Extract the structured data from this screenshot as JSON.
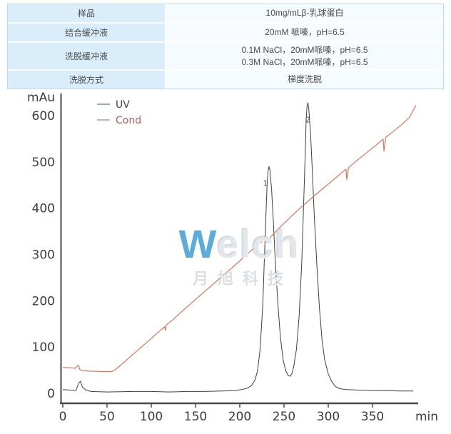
{
  "table": {
    "rows": [
      {
        "label": "样品",
        "value_lines": [
          "10mg/mLβ-乳球蛋白"
        ]
      },
      {
        "label": "结合缓冲液",
        "value_lines": [
          "20mM 哌嗪，pH=6.5"
        ]
      },
      {
        "label": "洗脱缓冲液",
        "value_lines": [
          "0.1M NaCl，20mM哌嗪，pH=6.5",
          "0.3M NaCl，20mM哌嗪，pH=6.5"
        ]
      },
      {
        "label": "洗脱方式",
        "value_lines": [
          "梯度洗脱"
        ]
      }
    ]
  },
  "watermark": {
    "brand_w": "W",
    "brand_rest": "elch",
    "subtitle": "月旭科技"
  },
  "chart_data": {
    "type": "line",
    "title": "",
    "xlabel": "min",
    "ylabel": "mAu",
    "xlim": [
      0,
      400
    ],
    "ylim": [
      0,
      650
    ],
    "x_ticks": [
      0,
      50,
      100,
      150,
      200,
      250,
      300,
      350
    ],
    "y_ticks": [
      0,
      100,
      200,
      300,
      400,
      500,
      600
    ],
    "grid": false,
    "legend_position": "top-left",
    "series": [
      {
        "name": "UV",
        "color": "#3f3f3f",
        "legend_dash_color": "#7d8ab8",
        "legend_text_color": "#39406e",
        "points": [
          [
            0,
            8
          ],
          [
            8,
            7
          ],
          [
            13,
            6
          ],
          [
            15,
            7
          ],
          [
            18,
            22
          ],
          [
            20,
            26
          ],
          [
            22,
            14
          ],
          [
            26,
            7
          ],
          [
            32,
            4
          ],
          [
            50,
            3
          ],
          [
            80,
            4
          ],
          [
            100,
            4
          ],
          [
            120,
            3
          ],
          [
            140,
            4
          ],
          [
            160,
            4
          ],
          [
            180,
            5
          ],
          [
            195,
            6
          ],
          [
            202,
            8
          ],
          [
            208,
            11
          ],
          [
            213,
            16
          ],
          [
            217,
            28
          ],
          [
            220,
            48
          ],
          [
            223,
            95
          ],
          [
            226,
            190
          ],
          [
            228,
            300
          ],
          [
            230,
            408
          ],
          [
            231,
            455
          ],
          [
            232,
            480
          ],
          [
            233,
            490
          ],
          [
            234,
            483
          ],
          [
            236,
            440
          ],
          [
            238,
            370
          ],
          [
            240,
            290
          ],
          [
            243,
            195
          ],
          [
            246,
            120
          ],
          [
            249,
            72
          ],
          [
            252,
            48
          ],
          [
            255,
            38
          ],
          [
            257,
            37
          ],
          [
            259,
            43
          ],
          [
            261,
            58
          ],
          [
            264,
            95
          ],
          [
            267,
            165
          ],
          [
            270,
            280
          ],
          [
            272,
            400
          ],
          [
            274,
            520
          ],
          [
            275,
            590
          ],
          [
            276,
            620
          ],
          [
            277,
            628
          ],
          [
            278,
            615
          ],
          [
            280,
            560
          ],
          [
            282,
            480
          ],
          [
            284,
            390
          ],
          [
            287,
            280
          ],
          [
            290,
            185
          ],
          [
            293,
            115
          ],
          [
            296,
            72
          ],
          [
            300,
            42
          ],
          [
            304,
            25
          ],
          [
            308,
            15
          ],
          [
            313,
            10
          ],
          [
            320,
            8
          ],
          [
            335,
            7
          ],
          [
            350,
            6
          ],
          [
            365,
            6
          ],
          [
            380,
            5
          ],
          [
            396,
            5
          ]
        ]
      },
      {
        "name": "Cond",
        "color": "#e0735a",
        "legend_dash_color": "#d49090",
        "legend_text_color": "#bf5b5b",
        "points": [
          [
            0,
            56
          ],
          [
            10,
            55
          ],
          [
            14,
            54
          ],
          [
            16,
            59
          ],
          [
            18,
            60
          ],
          [
            19,
            52
          ],
          [
            22,
            49
          ],
          [
            30,
            48
          ],
          [
            45,
            47
          ],
          [
            55,
            47
          ],
          [
            58,
            49
          ],
          [
            65,
            60
          ],
          [
            75,
            77
          ],
          [
            90,
            102
          ],
          [
            105,
            127
          ],
          [
            115,
            144
          ],
          [
            116,
            136
          ],
          [
            117,
            148
          ],
          [
            125,
            160
          ],
          [
            140,
            186
          ],
          [
            155,
            211
          ],
          [
            170,
            236
          ],
          [
            185,
            261
          ],
          [
            200,
            286
          ],
          [
            215,
            312
          ],
          [
            230,
            337
          ],
          [
            233,
            330
          ],
          [
            236,
            340
          ],
          [
            245,
            358
          ],
          [
            256,
            378
          ],
          [
            258,
            382
          ],
          [
            270,
            403
          ],
          [
            285,
            428
          ],
          [
            300,
            452
          ],
          [
            310,
            468
          ],
          [
            320,
            484
          ],
          [
            321,
            462
          ],
          [
            323,
            488
          ],
          [
            335,
            507
          ],
          [
            350,
            530
          ],
          [
            362,
            549
          ],
          [
            363,
            523
          ],
          [
            365,
            553
          ],
          [
            375,
            568
          ],
          [
            385,
            584
          ],
          [
            392,
            597
          ],
          [
            399,
            622
          ]
        ]
      }
    ],
    "peak_labels": [
      {
        "label": "1",
        "x": 229,
        "y": 448
      },
      {
        "label": "2",
        "x": 277,
        "y": 585
      }
    ]
  }
}
